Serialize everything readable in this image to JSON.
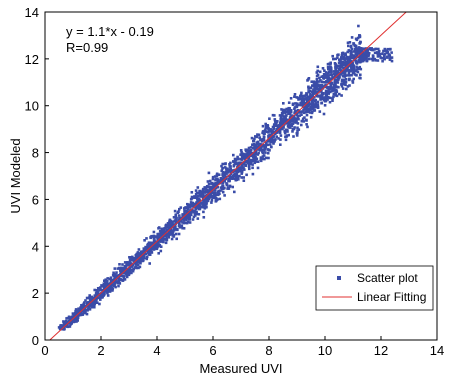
{
  "chart_data": {
    "type": "scatter",
    "xlabel": "Measured UVI",
    "ylabel": "UVI Modeled",
    "xlim": [
      0,
      14
    ],
    "ylim": [
      0,
      14
    ],
    "x_ticks": [
      "0",
      "2",
      "4",
      "6",
      "8",
      "10",
      "12",
      "14"
    ],
    "y_ticks": [
      "0",
      "2",
      "4",
      "6",
      "8",
      "10",
      "12",
      "14"
    ],
    "annotations": [
      "y = 1.1*x - 0.19",
      "R=0.99"
    ],
    "legend": {
      "placement": "bottom-right",
      "entries": [
        "Scatter plot",
        "Linear Fitting"
      ]
    },
    "grid": false,
    "series": [
      {
        "name": "Scatter plot",
        "kind": "points",
        "color": "#3a4ca8",
        "x_range": [
          0.5,
          12.4
        ],
        "centerline": {
          "slope": 1.1,
          "intercept": -0.19
        },
        "sample_points": [
          [
            0.6,
            0.5
          ],
          [
            1.0,
            0.9
          ],
          [
            2.0,
            2.1
          ],
          [
            3.0,
            3.1
          ],
          [
            4.0,
            4.2
          ],
          [
            5.0,
            5.3
          ],
          [
            6.0,
            6.4
          ],
          [
            7.0,
            7.5
          ],
          [
            8.0,
            8.6
          ],
          [
            9.0,
            9.7
          ],
          [
            10.0,
            10.8
          ],
          [
            11.0,
            11.9
          ],
          [
            11.5,
            12.4
          ],
          [
            12.0,
            12.1
          ],
          [
            12.4,
            12.0
          ]
        ]
      },
      {
        "name": "Linear Fitting",
        "kind": "line",
        "color": "#e03030",
        "slope": 1.1,
        "intercept": -0.19
      }
    ]
  }
}
